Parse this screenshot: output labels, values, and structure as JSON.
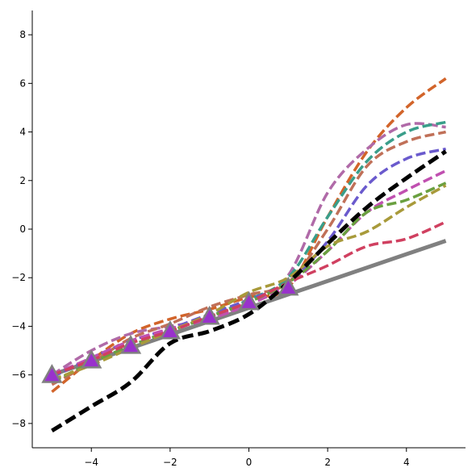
{
  "chart_data": {
    "type": "line",
    "title": "",
    "xlabel": "",
    "ylabel": "",
    "xlim": [
      -5.5,
      5.5
    ],
    "ylim": [
      -9,
      9
    ],
    "xticks": [
      -4,
      -2,
      0,
      2,
      4
    ],
    "yticks": [
      -8,
      -6,
      -4,
      -2,
      0,
      2,
      4,
      6,
      8
    ],
    "grid": false,
    "legend": "none",
    "series": [
      {
        "style": "solid",
        "color": "#808080",
        "points": [
          [
            -5,
            -6
          ],
          [
            -4,
            -5.4
          ],
          [
            -3,
            -4.8
          ],
          [
            -2,
            -4.2
          ],
          [
            -1,
            -3.6
          ],
          [
            0,
            -3
          ],
          [
            1,
            -2.4
          ],
          [
            2,
            -1.92
          ],
          [
            3,
            -1.44
          ],
          [
            4,
            -0.96
          ],
          [
            5,
            -0.48
          ]
        ]
      },
      {
        "style": "dashed",
        "color": "#d2642a",
        "points": [
          [
            -5,
            -6.7
          ],
          [
            -4,
            -5.4
          ],
          [
            -3,
            -4.3
          ],
          [
            -2,
            -3.7
          ],
          [
            -1,
            -3.3
          ],
          [
            0,
            -2.8
          ],
          [
            1,
            -2.4
          ],
          [
            2,
            0.5
          ],
          [
            3,
            3.2
          ],
          [
            4,
            5
          ],
          [
            5,
            6.2
          ]
        ]
      },
      {
        "style": "dashed",
        "color": "#b06aa8",
        "points": [
          [
            -5,
            -6.0
          ],
          [
            -4,
            -5.0
          ],
          [
            -3,
            -4.3
          ],
          [
            -2,
            -4.0
          ],
          [
            -1,
            -3.7
          ],
          [
            0,
            -3.0
          ],
          [
            1,
            -1.9
          ],
          [
            2,
            1.5
          ],
          [
            3,
            3.3
          ],
          [
            4,
            4.3
          ],
          [
            5,
            4.2
          ]
        ]
      },
      {
        "style": "dashed",
        "color": "#3a9e8a",
        "points": [
          [
            -5,
            -6.3
          ],
          [
            -4,
            -5.5
          ],
          [
            -3,
            -4.8
          ],
          [
            -2,
            -4.2
          ],
          [
            -1,
            -3.6
          ],
          [
            0,
            -2.9
          ],
          [
            1,
            -2.0
          ],
          [
            2,
            0.5
          ],
          [
            3,
            2.8
          ],
          [
            4,
            4.0
          ],
          [
            5,
            4.4
          ]
        ]
      },
      {
        "style": "dashed",
        "color": "#c07058",
        "points": [
          [
            -5,
            -6.4
          ],
          [
            -4,
            -5.5
          ],
          [
            -3,
            -4.5
          ],
          [
            -2,
            -3.9
          ],
          [
            -1,
            -3.2
          ],
          [
            0,
            -2.7
          ],
          [
            1,
            -2.2
          ],
          [
            2,
            0.0
          ],
          [
            3,
            2.6
          ],
          [
            4,
            3.6
          ],
          [
            5,
            4.0
          ]
        ]
      },
      {
        "style": "dashed",
        "color": "#6a5acd",
        "points": [
          [
            -5,
            -6.1
          ],
          [
            -4,
            -5.3
          ],
          [
            -3,
            -4.6
          ],
          [
            -2,
            -4.1
          ],
          [
            -1,
            -3.5
          ],
          [
            0,
            -2.9
          ],
          [
            1,
            -2.2
          ],
          [
            2,
            -0.5
          ],
          [
            3,
            1.8
          ],
          [
            4,
            2.9
          ],
          [
            5,
            3.3
          ]
        ]
      },
      {
        "style": "dashed",
        "color": "#c050b0",
        "points": [
          [
            -5,
            -6.0
          ],
          [
            -4,
            -5.3
          ],
          [
            -3,
            -4.6
          ],
          [
            -2,
            -4.1
          ],
          [
            -1,
            -3.7
          ],
          [
            0,
            -3.1
          ],
          [
            1,
            -2.3
          ],
          [
            2,
            -0.9
          ],
          [
            3,
            0.7
          ],
          [
            4,
            1.6
          ],
          [
            5,
            2.4
          ]
        ]
      },
      {
        "style": "dashed",
        "color": "#6aa040",
        "points": [
          [
            -5,
            -6.3
          ],
          [
            -4,
            -5.5
          ],
          [
            -3,
            -4.8
          ],
          [
            -2,
            -4.2
          ],
          [
            -1,
            -3.6
          ],
          [
            0,
            -3.0
          ],
          [
            1,
            -2.2
          ],
          [
            2,
            -0.9
          ],
          [
            3,
            0.7
          ],
          [
            4,
            1.2
          ],
          [
            5,
            1.9
          ]
        ]
      },
      {
        "style": "dashed",
        "color": "#a89a3a",
        "points": [
          [
            -5,
            -6.2
          ],
          [
            -4,
            -5.6
          ],
          [
            -3,
            -4.9
          ],
          [
            -2,
            -4.2
          ],
          [
            -1,
            -3.5
          ],
          [
            0,
            -2.6
          ],
          [
            1,
            -2.0
          ],
          [
            2,
            -0.7
          ],
          [
            3,
            -0.1
          ],
          [
            4,
            0.9
          ],
          [
            5,
            1.8
          ]
        ]
      },
      {
        "style": "dashed",
        "color": "#d04060",
        "points": [
          [
            -5,
            -6.0
          ],
          [
            -4,
            -5.4
          ],
          [
            -3,
            -4.7
          ],
          [
            -2,
            -4.2
          ],
          [
            -1,
            -3.6
          ],
          [
            0,
            -3.0
          ],
          [
            1,
            -2.2
          ],
          [
            2,
            -1.5
          ],
          [
            3,
            -0.7
          ],
          [
            4,
            -0.4
          ],
          [
            5,
            0.3
          ]
        ]
      },
      {
        "style": "dashed-bold",
        "color": "#000000",
        "points": [
          [
            -5,
            -8.3
          ],
          [
            -4,
            -7.3
          ],
          [
            -3,
            -6.3
          ],
          [
            -2,
            -4.7
          ],
          [
            -1,
            -4.2
          ],
          [
            0,
            -3.5
          ],
          [
            1,
            -2.2
          ],
          [
            2,
            -0.6
          ],
          [
            3,
            0.9
          ],
          [
            4,
            2.1
          ],
          [
            5,
            3.2
          ]
        ]
      }
    ],
    "markers": {
      "shape": "triangle",
      "fill": "#9932cc",
      "edge": "#808080",
      "points": [
        [
          -5,
          -6
        ],
        [
          -4,
          -5.4
        ],
        [
          -3,
          -4.8
        ],
        [
          -2,
          -4.2
        ],
        [
          -1,
          -3.6
        ],
        [
          0,
          -3
        ],
        [
          1,
          -2.4
        ]
      ]
    }
  }
}
